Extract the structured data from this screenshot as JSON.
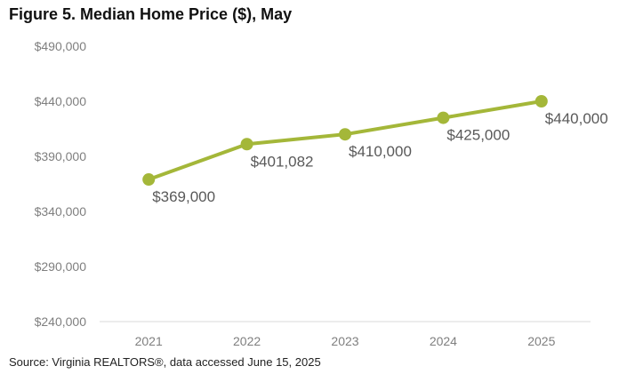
{
  "title": "Figure 5. Median Home Price ($), May",
  "source": "Source: Virginia REALTORS®, data accessed June 15, 2025",
  "colors": {
    "series": "#a4b739",
    "axis": "#d9d9d9",
    "tick_text": "#7f7f7f",
    "label_text": "#595959"
  },
  "chart_data": {
    "type": "line",
    "title": "Figure 5. Median Home Price ($), May",
    "categories": [
      "2021",
      "2022",
      "2023",
      "2024",
      "2025"
    ],
    "series": [
      {
        "values": [
          369000,
          401082,
          410000,
          425000,
          440000
        ],
        "data_labels": [
          "$369,000",
          "$401,082",
          "$410,000",
          "$425,000",
          "$440,000"
        ]
      }
    ],
    "yticks": [
      240000,
      290000,
      340000,
      390000,
      440000,
      490000
    ],
    "ytick_labels": [
      "$240,000",
      "$290,000",
      "$340,000",
      "$390,000",
      "$440,000",
      "$490,000"
    ],
    "ylim": [
      240000,
      490000
    ],
    "grid": false,
    "legend": "none"
  }
}
